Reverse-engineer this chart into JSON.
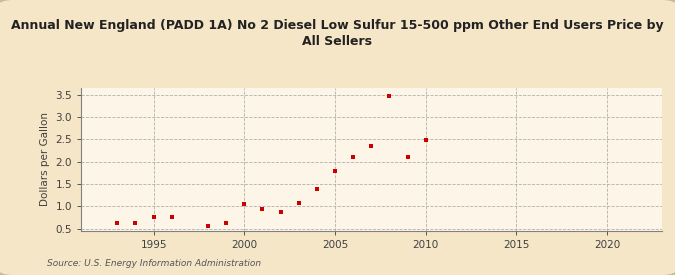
{
  "title_line1": "Annual New England (PADD 1A) No 2 Diesel Low Sulfur 15-500 ppm Other End Users Price by",
  "title_line2": "All Sellers",
  "ylabel": "Dollars per Gallon",
  "source": "Source: U.S. Energy Information Administration",
  "background_color": "#f5e6c8",
  "plot_bg_color": "#fdf6e8",
  "marker_color": "#cc0000",
  "marker": "s",
  "marker_size": 3.5,
  "years": [
    1993,
    1994,
    1995,
    1996,
    1998,
    1999,
    2000,
    2001,
    2002,
    2003,
    2004,
    2005,
    2006,
    2007,
    2008,
    2009,
    2010
  ],
  "values": [
    0.62,
    0.63,
    0.77,
    0.77,
    0.57,
    0.64,
    1.06,
    0.95,
    0.87,
    1.08,
    1.38,
    1.8,
    2.1,
    2.35,
    3.46,
    2.1,
    2.48
  ],
  "xlim": [
    1991,
    2023
  ],
  "ylim": [
    0.45,
    3.65
  ],
  "xticks": [
    1995,
    2000,
    2005,
    2010,
    2015,
    2020
  ],
  "yticks": [
    0.5,
    1.0,
    1.5,
    2.0,
    2.5,
    3.0,
    3.5
  ],
  "title_fontsize": 9,
  "label_fontsize": 7.5,
  "tick_fontsize": 7.5,
  "source_fontsize": 6.5,
  "grid_color": "#a0a0a0",
  "spine_color": "#808080",
  "tick_color": "#404040"
}
